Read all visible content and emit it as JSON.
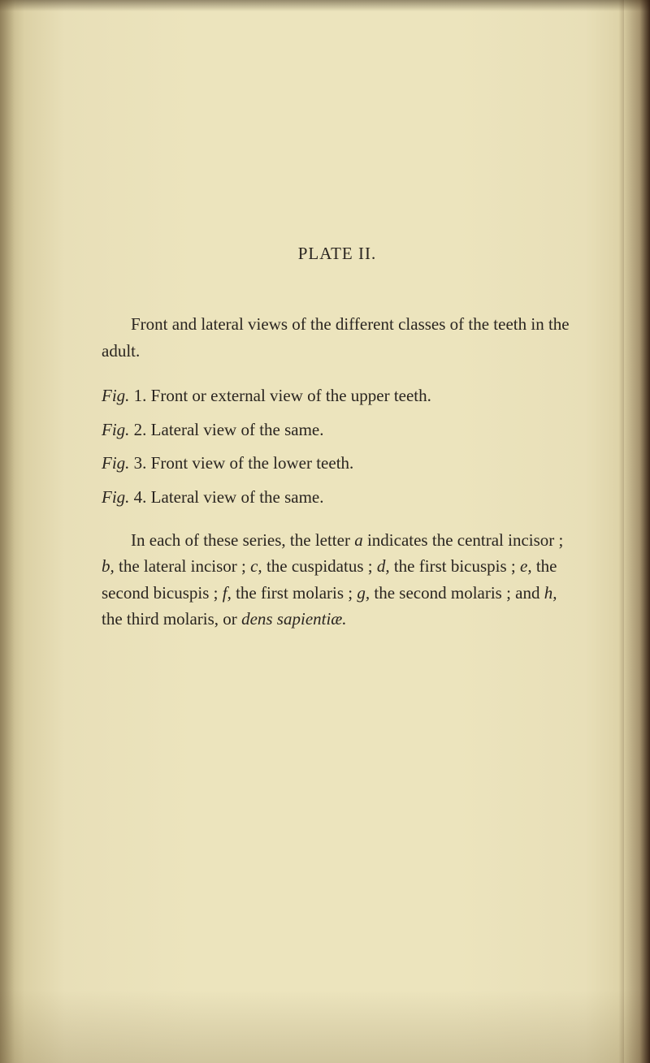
{
  "plate_title": "PLATE II.",
  "intro": "Front and lateral views of the different classes of the teeth in the adult.",
  "figs": {
    "f1": {
      "label": "Fig.",
      "num": " 1.",
      "text": " Front or external view of the upper teeth."
    },
    "f2": {
      "label": "Fig.",
      "num": " 2.",
      "text": " Lateral view of the same."
    },
    "f3": {
      "label": "Fig.",
      "num": " 3.",
      "text": " Front view of the lower teeth."
    },
    "f4": {
      "label": "Fig.",
      "num": " 4.",
      "text": " Lateral view of the same."
    }
  },
  "main": {
    "seg1": "In each of these series, the letter ",
    "a": "a",
    "seg2": " indicates the central incisor ; ",
    "b": "b,",
    "seg3": " the lateral incisor ; ",
    "c": "c,",
    "seg4": " the cus­pidatus ; ",
    "d": "d,",
    "seg5": " the first bicuspis ; ",
    "e": "e,",
    "seg6": " the second bicus­pis ; ",
    "f": "f,",
    "seg7": " the first molaris ; ",
    "g": "g,",
    "seg8": " the second molaris ; and ",
    "h": "h,",
    "seg9": " the third molaris, or ",
    "dens": "dens sapientiæ.",
    "seg10": ""
  },
  "colors": {
    "page_light": "#ece4bd",
    "page_mid": "#e8dfb8",
    "page_edge": "#d4c89a",
    "text": "#2a2520"
  },
  "typography": {
    "body_font": "Georgia, Times New Roman, serif",
    "body_size_pt": 16,
    "line_height": 1.55
  }
}
